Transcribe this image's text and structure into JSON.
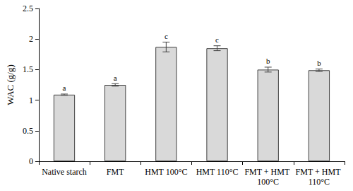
{
  "chart_data": {
    "type": "bar",
    "y_label": "WAC (g/g)",
    "categories": [
      "Native starch",
      "FMT",
      "HMT 100°C",
      "HMT 110°C",
      "FMT + HMT 100°C",
      "FMT + HMT 110°C"
    ],
    "values": [
      1.09,
      1.25,
      1.87,
      1.85,
      1.5,
      1.49
    ],
    "errors": [
      0.01,
      0.02,
      0.08,
      0.04,
      0.04,
      0.02
    ],
    "annotations": [
      "a",
      "a",
      "c",
      "c",
      "b",
      "b"
    ],
    "color": "#d9d9d9",
    "ylim": [
      0,
      2.5
    ],
    "yticks": [
      0,
      0.5,
      1,
      1.5,
      2,
      2.5
    ],
    "grid": false
  }
}
